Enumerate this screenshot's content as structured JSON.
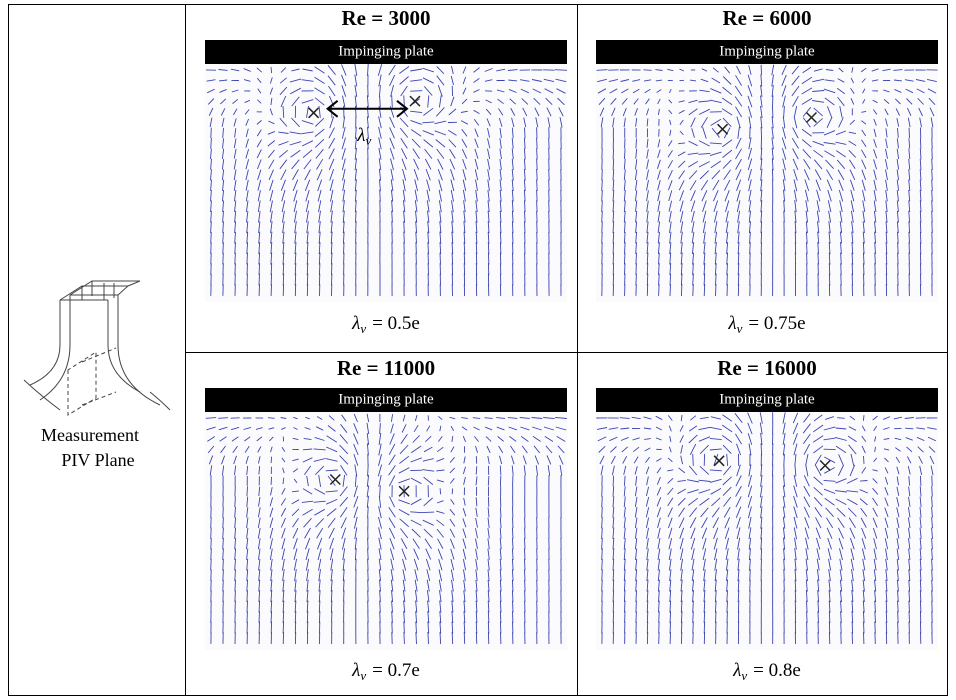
{
  "left": {
    "label": [
      "Measurement",
      "PIV Plane"
    ]
  },
  "panels": [
    {
      "title": "Re = 3000",
      "plate": "Impinging plate",
      "caption": {
        "symbol": "λ",
        "subscript": "v",
        "value": "= 0.5e"
      },
      "annotation": {
        "symbol": "λ",
        "subscript": "v"
      }
    },
    {
      "title": "Re = 6000",
      "plate": "Impinging plate",
      "caption": {
        "symbol": "λ",
        "subscript": "v",
        "value": "= 0.75e"
      }
    },
    {
      "title": "Re = 11000",
      "plate": "Impinging plate",
      "caption": {
        "symbol": "λ",
        "subscript": "v",
        "value": "= 0.7e"
      }
    },
    {
      "title": "Re = 16000",
      "plate": "Impinging plate",
      "caption": {
        "symbol": "λ",
        "subscript": "v",
        "value": "= 0.8e"
      }
    }
  ]
}
